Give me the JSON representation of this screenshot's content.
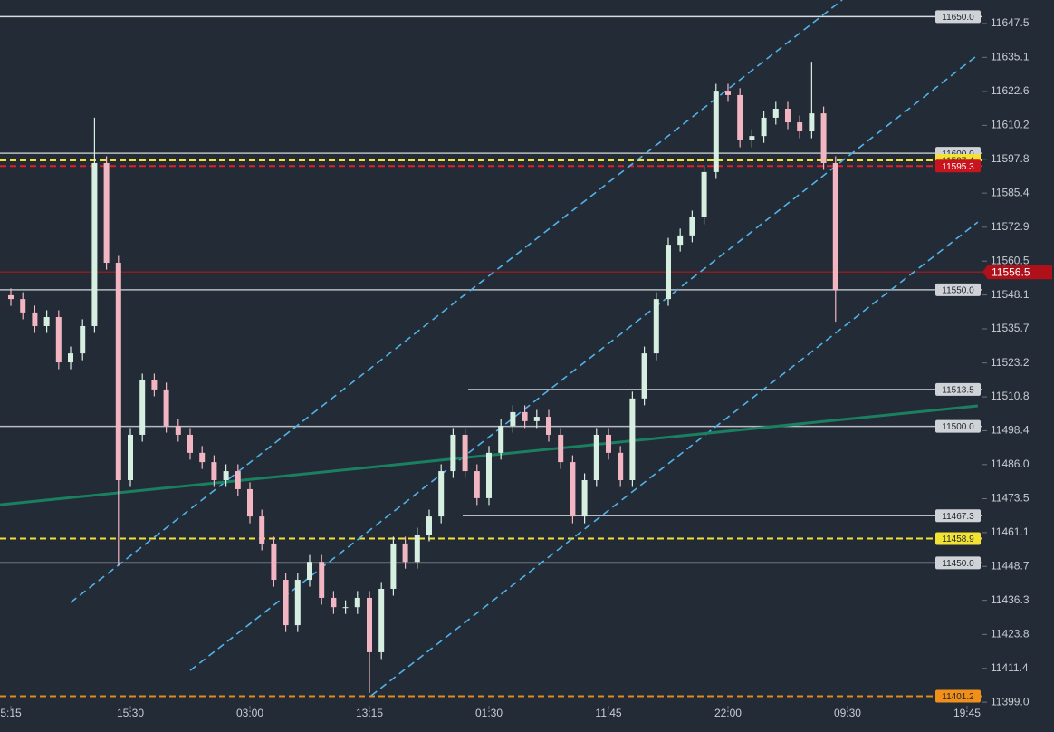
{
  "chart_data": {
    "type": "candlestick",
    "x": [
      1,
      2,
      3,
      4,
      5,
      6,
      7,
      8,
      9,
      10,
      11,
      12,
      13,
      14,
      15,
      16,
      17,
      18,
      19,
      20,
      21,
      22,
      23,
      24,
      25,
      26,
      27,
      28,
      29,
      30,
      31,
      32,
      33,
      34,
      35,
      36,
      37,
      38,
      39,
      40,
      41,
      42,
      43,
      44,
      45,
      46,
      47,
      48,
      49,
      50,
      51,
      52,
      53,
      54,
      55,
      56,
      57,
      58,
      59,
      60,
      61,
      62,
      63,
      64,
      65,
      66,
      67,
      68,
      69,
      70
    ],
    "open": [
      11548.0,
      11546.6,
      11541.7,
      11536.7,
      11540.0,
      11523.4,
      11526.7,
      11536.7,
      11596.4,
      11559.9,
      11480.3,
      11496.9,
      11516.8,
      11513.5,
      11500.2,
      11496.9,
      11490.3,
      11486.9,
      11480.3,
      11483.6,
      11477.0,
      11467.0,
      11457.1,
      11443.8,
      11427.2,
      11443.8,
      11450.4,
      11437.2,
      11433.8,
      11433.8,
      11437.2,
      11417.3,
      11440.5,
      11457.1,
      11450.4,
      11460.4,
      11467.0,
      11483.6,
      11496.9,
      11483.6,
      11473.7,
      11490.3,
      11500.2,
      11505.2,
      11501.9,
      11503.5,
      11496.9,
      11486.9,
      11467.0,
      11480.3,
      11496.9,
      11490.3,
      11480.3,
      11510.2,
      11526.7,
      11546.6,
      11566.5,
      11569.9,
      11576.5,
      11593.1,
      11622.9,
      11621.3,
      11604.7,
      11606.3,
      11613.0,
      11616.3,
      11611.3,
      11608.0,
      11614.6,
      11596.4
    ],
    "high": [
      11550.5,
      11549.1,
      11544.2,
      11542.5,
      11542.5,
      11529.2,
      11539.2,
      11613.0,
      11598.9,
      11562.4,
      11499.4,
      11519.3,
      11519.3,
      11516.0,
      11502.7,
      11499.4,
      11492.8,
      11489.4,
      11486.1,
      11486.1,
      11479.5,
      11469.5,
      11459.6,
      11446.3,
      11446.3,
      11452.9,
      11452.9,
      11439.7,
      11436.3,
      11439.7,
      11439.7,
      11443.0,
      11459.6,
      11459.6,
      11462.9,
      11469.5,
      11486.1,
      11499.4,
      11499.4,
      11486.1,
      11492.8,
      11502.7,
      11507.7,
      11507.7,
      11506.0,
      11506.0,
      11499.4,
      11489.4,
      11482.8,
      11499.4,
      11499.4,
      11492.8,
      11512.7,
      11529.2,
      11549.1,
      11569.0,
      11572.4,
      11579.0,
      11595.6,
      11625.4,
      11625.4,
      11623.8,
      11608.8,
      11615.5,
      11618.8,
      11618.8,
      11613.8,
      11633.5,
      11617.1,
      11598.9
    ],
    "low": [
      11544.1,
      11539.2,
      11534.2,
      11534.2,
      11520.9,
      11520.9,
      11524.2,
      11534.2,
      11557.4,
      11449.0,
      11477.8,
      11494.4,
      11511.0,
      11497.7,
      11494.4,
      11487.8,
      11484.4,
      11477.8,
      11477.8,
      11474.5,
      11464.5,
      11454.6,
      11441.3,
      11424.7,
      11424.7,
      11441.3,
      11434.7,
      11431.3,
      11431.3,
      11431.3,
      11402.4,
      11414.8,
      11438.0,
      11447.9,
      11447.9,
      11457.9,
      11464.5,
      11481.1,
      11481.1,
      11471.2,
      11471.2,
      11487.8,
      11497.7,
      11499.4,
      11499.4,
      11494.4,
      11484.4,
      11464.5,
      11464.5,
      11477.8,
      11487.8,
      11477.8,
      11477.8,
      11507.7,
      11524.2,
      11544.1,
      11564.0,
      11567.4,
      11574.0,
      11590.6,
      11618.8,
      11602.2,
      11602.2,
      11603.8,
      11610.5,
      11608.8,
      11605.5,
      11605.5,
      11593.9,
      11538.3
    ],
    "close": [
      11546.6,
      11541.7,
      11536.7,
      11540.0,
      11523.4,
      11526.7,
      11536.7,
      11596.4,
      11559.9,
      11480.3,
      11496.9,
      11516.8,
      11513.5,
      11500.2,
      11496.9,
      11490.3,
      11486.9,
      11480.3,
      11483.6,
      11477.0,
      11467.0,
      11457.1,
      11443.8,
      11427.2,
      11443.8,
      11450.4,
      11437.2,
      11433.8,
      11433.8,
      11437.2,
      11417.3,
      11440.5,
      11457.1,
      11450.4,
      11460.4,
      11467.0,
      11483.6,
      11496.9,
      11483.6,
      11473.7,
      11490.3,
      11500.2,
      11505.2,
      11501.9,
      11503.5,
      11496.9,
      11486.9,
      11467.0,
      11480.3,
      11496.9,
      11490.3,
      11480.3,
      11510.2,
      11526.7,
      11546.6,
      11566.5,
      11569.9,
      11576.5,
      11593.1,
      11622.9,
      11621.3,
      11604.7,
      11606.3,
      11613.0,
      11616.3,
      11611.3,
      11608.0,
      11614.6,
      11596.4,
      11549.9
    ],
    "up_color": "#d6efe0",
    "down_color": "#f2b6c2",
    "xlim": [
      0.09,
      82.29
    ],
    "xticks": [
      {
        "value": 1,
        "label": "5:15"
      },
      {
        "value": 11,
        "label": "15:30"
      },
      {
        "value": 21,
        "label": "03:00"
      },
      {
        "value": 31,
        "label": "13:15"
      },
      {
        "value": 41,
        "label": "01:30"
      },
      {
        "value": 51,
        "label": "11:45"
      },
      {
        "value": 61,
        "label": "22:00"
      },
      {
        "value": 71,
        "label": "09:30"
      },
      {
        "value": 81,
        "label": "19:45"
      }
    ],
    "ylim": [
      11392.4,
      11656.1
    ],
    "yticks": [
      11647.5,
      11635.1,
      11622.6,
      11610.2,
      11597.8,
      11585.4,
      11572.9,
      11560.5,
      11548.1,
      11535.7,
      11523.2,
      11510.8,
      11498.4,
      {
        "value": 11486,
        "label": "11486.0"
      },
      11473.5,
      11461.1,
      11448.7,
      11436.3,
      11423.8,
      11411.4,
      {
        "value": 11399,
        "label": "11399.0"
      }
    ],
    "levels": [
      {
        "value": 11650,
        "label": "11650.0",
        "color": "#d8dce0",
        "style": "solid",
        "start": 0.09,
        "tag": "plot",
        "tag_color": "#cfd3d8",
        "text_color": "#1d232b"
      },
      {
        "value": 11600,
        "label": "11600.0",
        "color": "#b8bcc2",
        "style": "solid",
        "start": 0.09,
        "tag": "plot",
        "tag_color": "#cfd3d8",
        "text_color": "#1d232b"
      },
      {
        "value": 11597.4,
        "label": "11597.4",
        "color": "#f2e234",
        "style": "dashed",
        "start": 0.09,
        "tag": "plot",
        "tag_color": "#f2e234",
        "text_color": "#1d232b"
      },
      {
        "value": 11595.3,
        "label": "11595.3",
        "color": "#e0202a",
        "style": "dashed",
        "start": 0.09,
        "tag": "plot",
        "tag_color": "#c8141e",
        "text_color": "#ffffff"
      },
      {
        "value": 11556.5,
        "label": "11556.5",
        "color": "#8a1c22",
        "style": "solid",
        "start": 0.09,
        "tag": "axis",
        "tag_color": "#b0101a",
        "text_color": "#ffffff"
      },
      {
        "value": 11550,
        "label": "11550.0",
        "color": "#b8bcc2",
        "style": "solid",
        "start": 0.09,
        "tag": "plot",
        "tag_color": "#cfd3d8",
        "text_color": "#1d232b"
      },
      {
        "value": 11513.5,
        "label": "11513.5",
        "color": "#b8bcc2",
        "style": "solid",
        "start": 39.26,
        "tag": "plot",
        "tag_color": "#cfd3d8",
        "text_color": "#1d232b"
      },
      {
        "value": 11500,
        "label": "11500.0",
        "color": "#b8bcc2",
        "style": "solid",
        "start": 0.09,
        "tag": "plot",
        "tag_color": "#cfd3d8",
        "text_color": "#1d232b"
      },
      {
        "value": 11467.3,
        "label": "11467.3",
        "color": "#b8bcc2",
        "style": "solid",
        "start": 38.8,
        "tag": "plot",
        "tag_color": "#cfd3d8",
        "text_color": "#1d232b"
      },
      {
        "value": 11458.9,
        "label": "11458.9",
        "color": "#f2e234",
        "style": "dashed",
        "start": 0.09,
        "tag": "plot",
        "tag_color": "#f2e234",
        "text_color": "#1d232b"
      },
      {
        "value": 11450,
        "label": "11450.0",
        "color": "#b8bcc2",
        "style": "solid",
        "start": 0.09,
        "tag": "plot",
        "tag_color": "#cfd3d8",
        "text_color": "#1d232b"
      },
      {
        "value": 11401.2,
        "label": "11401.2",
        "color": "#e08a1a",
        "style": "dashed",
        "start": 0.09,
        "tag": "plot",
        "tag_color": "#f0901a",
        "text_color": "#1d232b"
      }
    ],
    "trendlines": [
      {
        "x": [
          6.0,
          70.55
        ],
        "y": [
          11435.5,
          11656.1
        ],
        "color": "#4fb3e8",
        "style": "dashed"
      },
      {
        "x": [
          16.0,
          81.76
        ],
        "y": [
          11410.6,
          11635.5
        ],
        "color": "#4fb3e8",
        "style": "dashed"
      },
      {
        "x": [
          31.15,
          81.9
        ],
        "y": [
          11401.4,
          11574.8
        ],
        "color": "#4fb3e8",
        "style": "dashed"
      },
      {
        "x": [
          0.09,
          81.9
        ],
        "y": [
          11471.3,
          11507.5
        ],
        "color": "#1a8060",
        "style": "solid"
      }
    ]
  }
}
